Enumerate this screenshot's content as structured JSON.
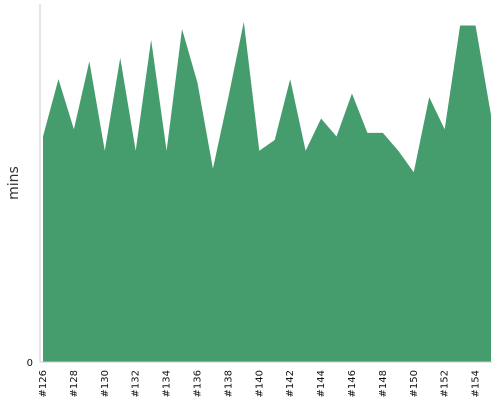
{
  "chart_data": {
    "type": "area",
    "ylabel": "mins",
    "xlabel": "",
    "title": "",
    "color": "#459d6d",
    "grid": false,
    "y_tick_labels": [
      "0"
    ],
    "ylim": [
      0,
      100
    ],
    "categories": [
      "#126",
      "#127",
      "#128",
      "#129",
      "#130",
      "#131",
      "#132",
      "#133",
      "#134",
      "#135",
      "#136",
      "#137",
      "#138",
      "#139",
      "#140",
      "#141",
      "#142",
      "#143",
      "#144",
      "#145",
      "#146",
      "#147",
      "#148",
      "#149",
      "#150",
      "#151",
      "#152",
      "#153",
      "#154",
      "#155"
    ],
    "tick_labels": [
      "#126",
      "#128",
      "#130",
      "#132",
      "#134",
      "#136",
      "#138",
      "#140",
      "#142",
      "#144",
      "#146",
      "#148",
      "#150",
      "#152",
      "#154"
    ],
    "values": [
      63,
      79,
      65,
      84,
      59,
      85,
      59,
      90,
      59,
      93,
      78,
      54,
      74,
      95,
      59,
      62,
      79,
      59,
      68,
      63,
      75,
      64,
      64,
      59,
      53,
      74,
      65,
      94,
      94,
      69
    ]
  }
}
